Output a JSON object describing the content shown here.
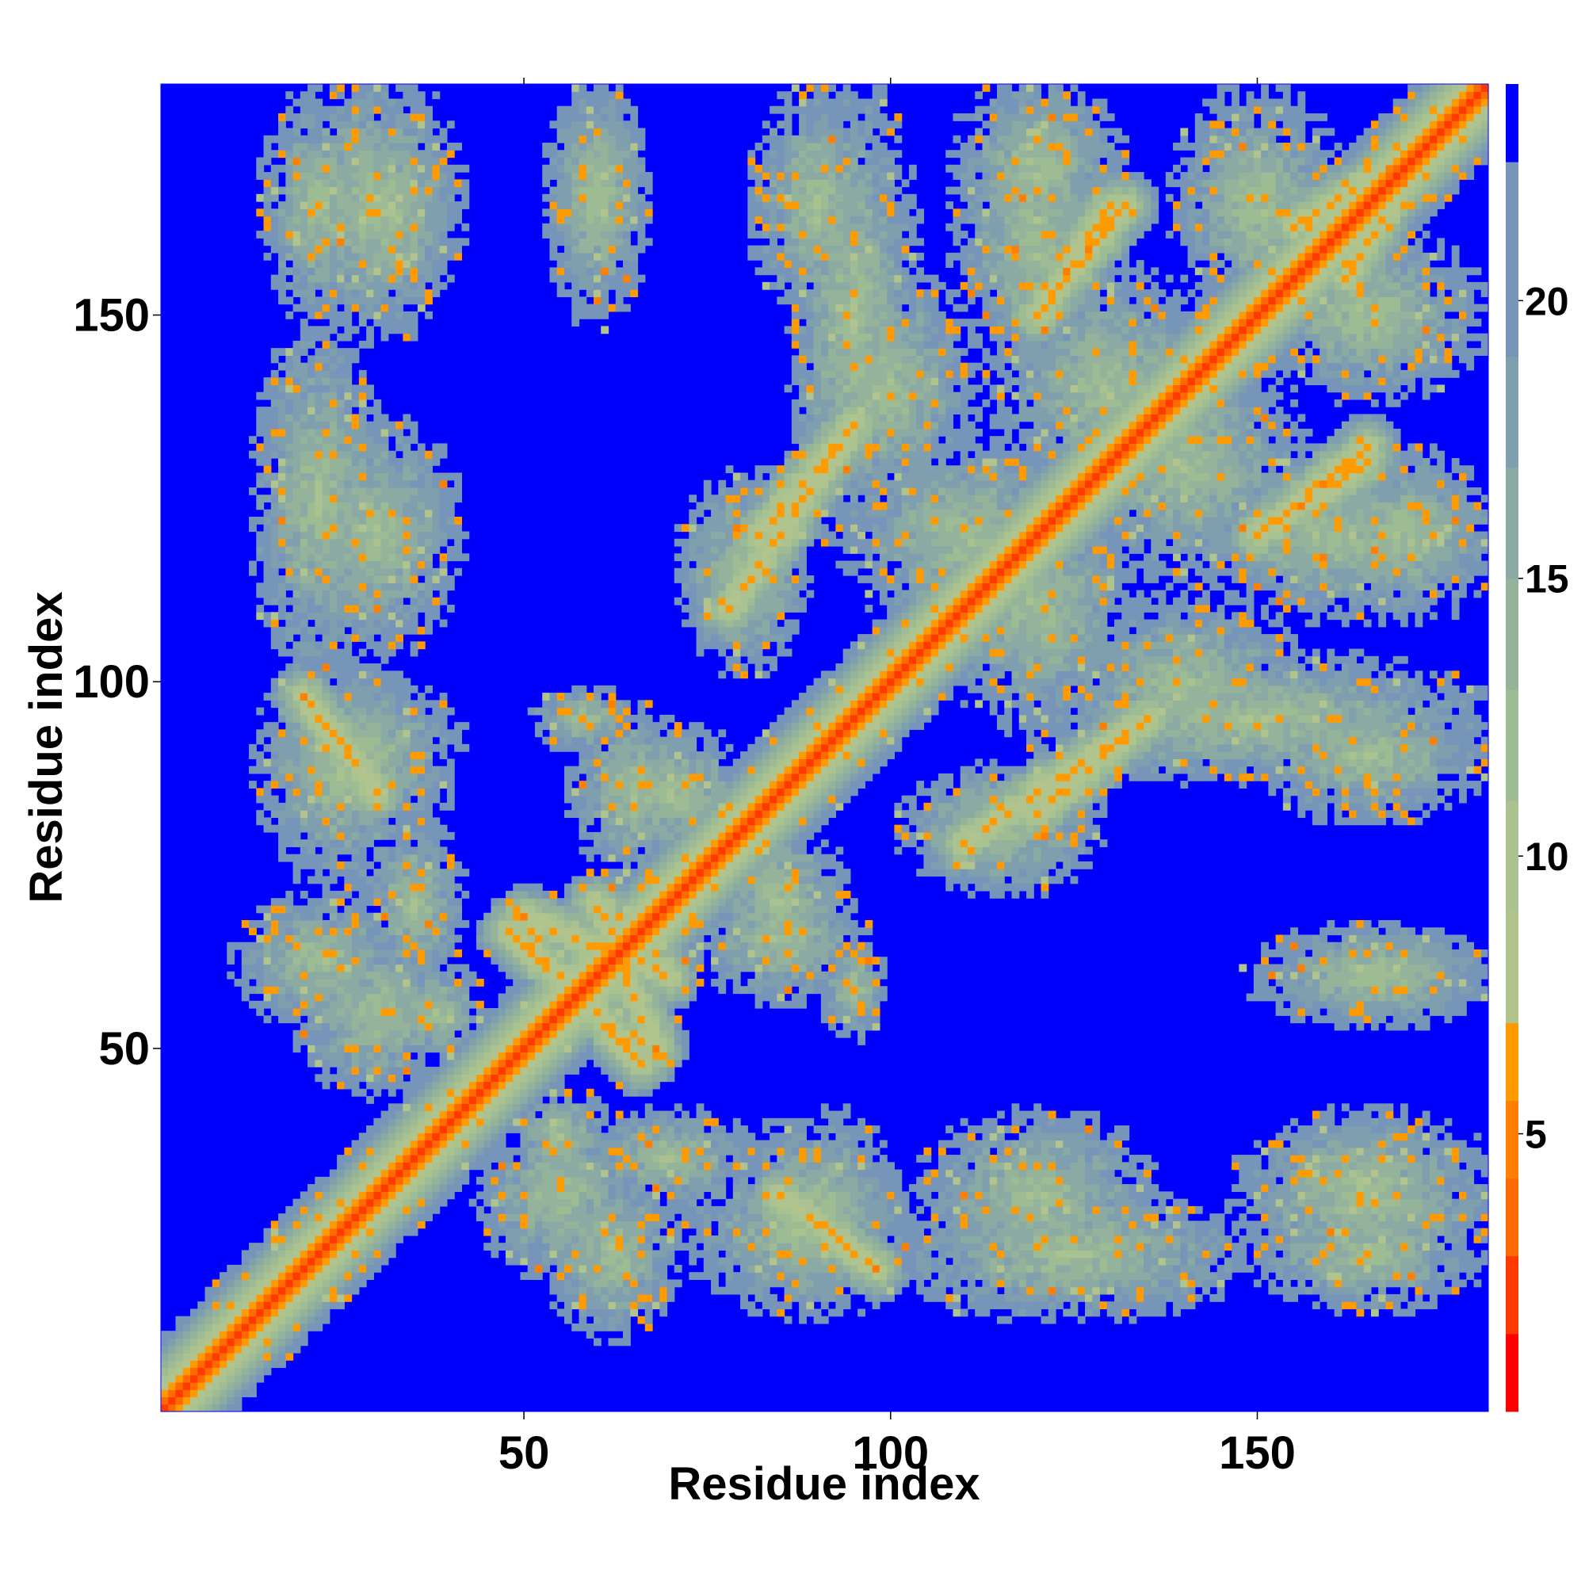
{
  "chart_data": {
    "type": "heatmap",
    "title": "",
    "xlabel": "Residue index",
    "ylabel": "Residue index",
    "n_residues": 181,
    "xlim": [
      1,
      181
    ],
    "ylim": [
      1,
      181
    ],
    "xticks": [
      50,
      100,
      150
    ],
    "yticks": [
      50,
      100,
      150
    ],
    "xtick_labels": [
      "50",
      "100",
      "150"
    ],
    "ytick_labels": [
      "50",
      "100",
      "150"
    ],
    "value_range": [
      0,
      23.9
    ],
    "cutoff_value": 22.5,
    "colorbar": {
      "ticks": [
        5,
        10,
        15,
        20
      ],
      "tick_labels": [
        "5",
        "10",
        "15",
        "20"
      ],
      "levels": [
        {
          "max": 1.4,
          "color": "#ff0000"
        },
        {
          "max": 2.8,
          "color": "#ff3a00"
        },
        {
          "max": 4.2,
          "color": "#ff6a00"
        },
        {
          "max": 5.6,
          "color": "#ff8000"
        },
        {
          "max": 7.0,
          "color": "#ff9a00"
        },
        {
          "max": 9.0,
          "color": "#b2c48e"
        },
        {
          "max": 11.0,
          "color": "#a9c290"
        },
        {
          "max": 13.0,
          "color": "#9ebc93"
        },
        {
          "max": 15.0,
          "color": "#95b39b"
        },
        {
          "max": 17.0,
          "color": "#8aaaa3"
        },
        {
          "max": 19.0,
          "color": "#7f9fae"
        },
        {
          "max": 22.5,
          "color": "#7795b8"
        },
        {
          "max": 24.0,
          "color": "#0000ff"
        }
      ]
    },
    "background_color": "#0000ff",
    "contact_blocks": [
      {
        "cx": 22,
        "cy": 165,
        "rx": 7,
        "ry": 14
      },
      {
        "cx": 32,
        "cy": 164,
        "rx": 8,
        "ry": 12
      },
      {
        "cx": 60,
        "cy": 168,
        "rx": 6,
        "ry": 12
      },
      {
        "cx": 22,
        "cy": 125,
        "rx": 8,
        "ry": 22
      },
      {
        "cx": 28,
        "cy": 90,
        "rx": 12,
        "ry": 10
      },
      {
        "cx": 22,
        "cy": 62,
        "rx": 10,
        "ry": 8
      },
      {
        "cx": 35,
        "cy": 70,
        "rx": 6,
        "ry": 10
      },
      {
        "cx": 38,
        "cy": 55,
        "rx": 6,
        "ry": 6
      },
      {
        "cx": 58,
        "cy": 95,
        "rx": 6,
        "ry": 4
      },
      {
        "cx": 65,
        "cy": 85,
        "rx": 8,
        "ry": 10
      },
      {
        "cx": 85,
        "cy": 70,
        "rx": 8,
        "ry": 10
      },
      {
        "cx": 55,
        "cy": 30,
        "rx": 10,
        "ry": 10
      },
      {
        "cx": 88,
        "cy": 25,
        "rx": 14,
        "ry": 10
      },
      {
        "cx": 120,
        "cy": 30,
        "rx": 14,
        "ry": 10
      },
      {
        "cx": 165,
        "cy": 30,
        "rx": 16,
        "ry": 10
      },
      {
        "cx": 165,
        "cy": 60,
        "rx": 14,
        "ry": 6
      },
      {
        "cx": 95,
        "cy": 150,
        "rx": 8,
        "ry": 28
      },
      {
        "cx": 110,
        "cy": 120,
        "rx": 14,
        "ry": 12
      },
      {
        "cx": 130,
        "cy": 140,
        "rx": 14,
        "ry": 14
      },
      {
        "cx": 150,
        "cy": 165,
        "rx": 10,
        "ry": 14
      },
      {
        "cx": 160,
        "cy": 120,
        "rx": 16,
        "ry": 10
      },
      {
        "cx": 140,
        "cy": 100,
        "rx": 14,
        "ry": 10
      },
      {
        "cx": 115,
        "cy": 80,
        "rx": 12,
        "ry": 8
      },
      {
        "cx": 165,
        "cy": 90,
        "rx": 14,
        "ry": 8
      },
      {
        "cx": 120,
        "cy": 170,
        "rx": 10,
        "ry": 12
      }
    ],
    "contact_bands": [
      {
        "x0": 60,
        "y0": 70,
        "x1": 68,
        "y1": 50
      },
      {
        "x0": 48,
        "y0": 66,
        "x1": 60,
        "y1": 55
      },
      {
        "x0": 20,
        "y0": 98,
        "x1": 30,
        "y1": 85
      },
      {
        "x0": 82,
        "y0": 120,
        "x1": 95,
        "y1": 135
      },
      {
        "x0": 110,
        "y0": 78,
        "x1": 135,
        "y1": 95
      },
      {
        "x0": 120,
        "y0": 150,
        "x1": 130,
        "y1": 165
      },
      {
        "x0": 150,
        "y0": 120,
        "x1": 165,
        "y1": 132
      },
      {
        "x0": 155,
        "y0": 162,
        "x1": 168,
        "y1": 170
      }
    ]
  }
}
